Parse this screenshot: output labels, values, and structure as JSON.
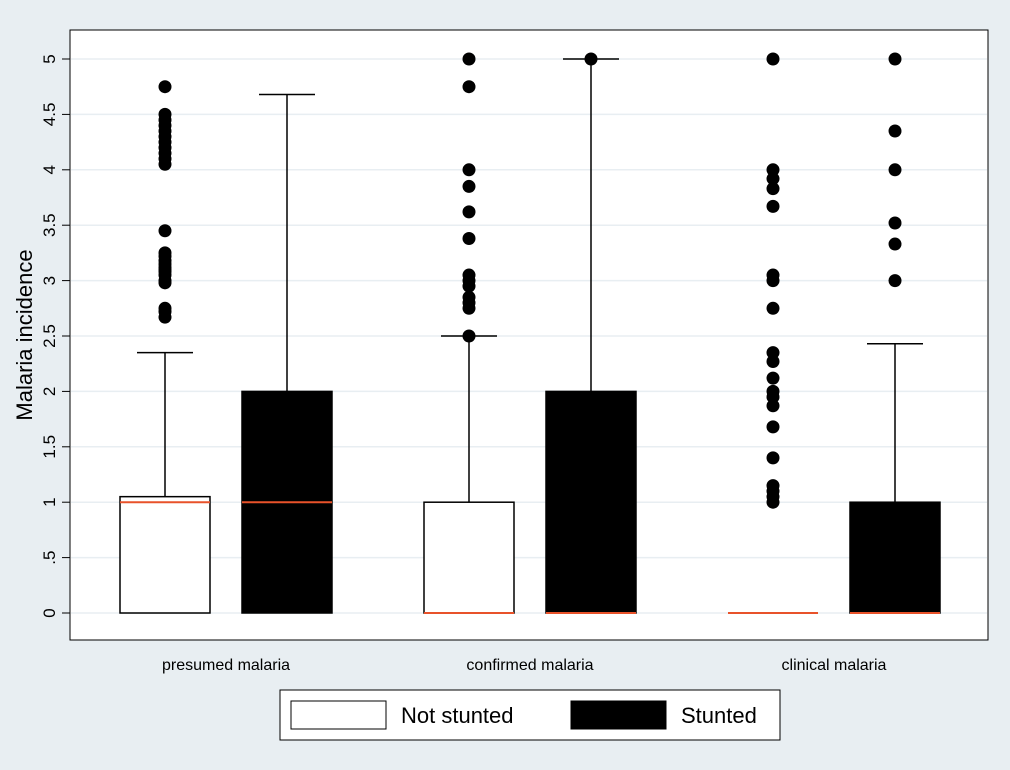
{
  "chart_data": {
    "type": "box",
    "ylabel": "Malaria incidence",
    "ylim": [
      0,
      5
    ],
    "yticks": [
      {
        "value": 0,
        "label": "0"
      },
      {
        "value": 0.5,
        "label": ".5"
      },
      {
        "value": 1,
        "label": "1"
      },
      {
        "value": 1.5,
        "label": "1.5"
      },
      {
        "value": 2,
        "label": "2"
      },
      {
        "value": 2.5,
        "label": "2.5"
      },
      {
        "value": 3,
        "label": "3"
      },
      {
        "value": 3.5,
        "label": "3.5"
      },
      {
        "value": 4,
        "label": "4"
      },
      {
        "value": 4.5,
        "label": "4.5"
      },
      {
        "value": 5,
        "label": "5"
      }
    ],
    "grid": true,
    "legend_position": "bottom",
    "categories": [
      "presumed malaria",
      "confirmed malaria",
      "clinical malaria"
    ],
    "series": [
      {
        "name": "Not stunted",
        "fill": "#ffffff",
        "boxes": [
          {
            "q1": 0,
            "median": 1,
            "q3": 1.05,
            "whisker_low": 0,
            "whisker_high": 2.35,
            "outliers": [
              2.67,
              2.72,
              2.75,
              2.98,
              3.0,
              3.05,
              3.08,
              3.1,
              3.12,
              3.15,
              3.18,
              3.22,
              3.25,
              3.45,
              4.05,
              4.1,
              4.15,
              4.2,
              4.25,
              4.3,
              4.35,
              4.4,
              4.45,
              4.5,
              4.75
            ]
          },
          {
            "q1": 0,
            "median": 0,
            "q3": 1,
            "whisker_low": 0,
            "whisker_high": 2.5,
            "outliers": [
              2.5,
              2.75,
              2.8,
              2.85,
              2.95,
              3.0,
              3.05,
              3.38,
              3.62,
              3.85,
              4.0,
              4.75,
              5.0
            ]
          },
          {
            "q1": 0,
            "median": 0,
            "q3": 0,
            "whisker_low": 0,
            "whisker_high": 0,
            "outliers": [
              1.0,
              1.05,
              1.1,
              1.15,
              1.4,
              1.68,
              1.87,
              1.95,
              2.0,
              2.12,
              2.27,
              2.35,
              2.75,
              3.0,
              3.05,
              3.67,
              3.83,
              3.92,
              4.0,
              5.0
            ]
          }
        ]
      },
      {
        "name": "Stunted",
        "fill": "#000000",
        "boxes": [
          {
            "q1": 0,
            "median": 1,
            "q3": 2,
            "whisker_low": 0,
            "whisker_high": 4.68,
            "outliers": []
          },
          {
            "q1": 0,
            "median": 0,
            "q3": 2,
            "whisker_low": 0,
            "whisker_high": 5,
            "outliers": [
              5.0
            ]
          },
          {
            "q1": 0,
            "median": 0,
            "q3": 1,
            "whisker_low": 0,
            "whisker_high": 2.43,
            "outliers": [
              3.0,
              3.33,
              3.52,
              4.0,
              4.35,
              5.0
            ]
          }
        ]
      }
    ],
    "colors": {
      "background": "#e8eef2",
      "plot_area": "#ffffff",
      "median_line": "#e8522a",
      "grid": "#e8eef2"
    }
  }
}
